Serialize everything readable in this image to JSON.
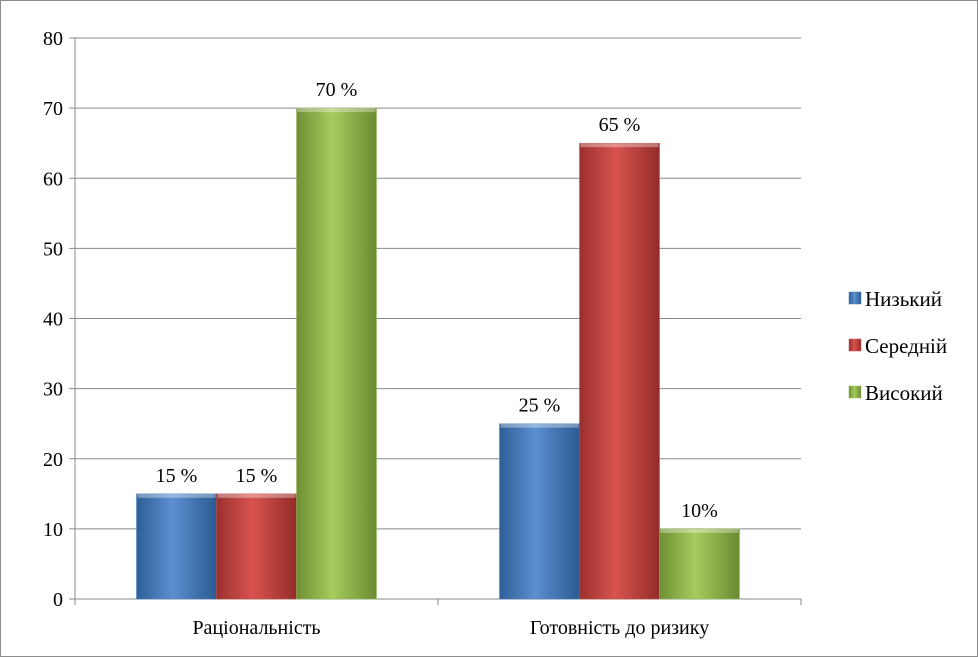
{
  "chart_data": {
    "type": "bar",
    "title": "",
    "xlabel": "",
    "ylabel": "",
    "categories": [
      "Раціональність",
      "Готовність до ризику"
    ],
    "ylim": [
      0,
      80
    ],
    "yticks": [
      0,
      10,
      20,
      30,
      40,
      50,
      60,
      70,
      80
    ],
    "grid": true,
    "legend_position": "right",
    "series": [
      {
        "name": "Низький",
        "values": [
          15,
          25
        ],
        "labels": [
          "15 %",
          "25 %"
        ],
        "color": "#4a7ebb"
      },
      {
        "name": "Середній",
        "values": [
          15,
          65
        ],
        "labels": [
          "15 %",
          "65 %"
        ],
        "color": "#c0504d"
      },
      {
        "name": "Високий",
        "values": [
          70,
          10
        ],
        "labels": [
          "70 %",
          "10%"
        ],
        "color": "#9bbb59"
      }
    ]
  }
}
